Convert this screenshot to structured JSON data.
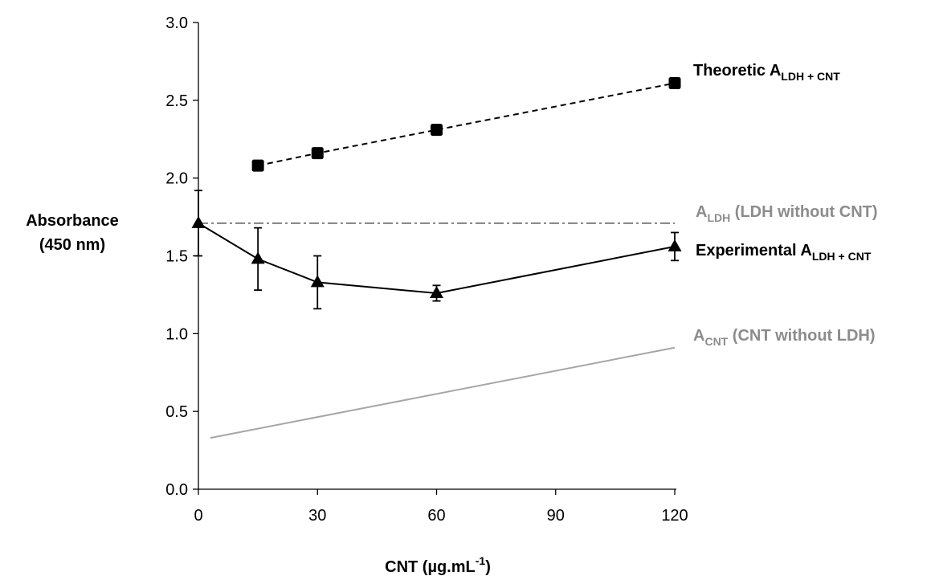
{
  "chart_data": {
    "type": "line",
    "xlabel": {
      "main": "CNT (µg.mL",
      "sup": "-1",
      "close": ")"
    },
    "ylabel": [
      "Absorbance",
      "(450 nm)"
    ],
    "xlim": [
      0,
      120
    ],
    "ylim": [
      0,
      3.0
    ],
    "x_ticks": [
      "0",
      "30",
      "60",
      "90",
      "120"
    ],
    "y_ticks": [
      "0.0",
      "0.5",
      "1.0",
      "1.5",
      "2.0",
      "2.5",
      "3.0"
    ],
    "grid": false,
    "series": [
      {
        "label": {
          "main": "Theoretic A",
          "sub": "LDH + CNT",
          "tail": ""
        },
        "style": "dashed",
        "marker": "square",
        "color": "#000000",
        "x": [
          15,
          30,
          60,
          120
        ],
        "y": [
          2.08,
          2.16,
          2.31,
          2.61
        ]
      },
      {
        "label": {
          "main": "A",
          "sub": "LDH",
          "tail": " (LDH without CNT)"
        },
        "style": "dashdot",
        "marker": "none",
        "color": "#808080",
        "x": [
          0,
          120
        ],
        "y": [
          1.71,
          1.71
        ]
      },
      {
        "label": {
          "main": "Experimental A",
          "sub": "LDH + CNT",
          "tail": ""
        },
        "style": "solid",
        "marker": "triangle",
        "color": "#000000",
        "x": [
          0,
          15,
          30,
          60,
          120
        ],
        "y": [
          1.71,
          1.48,
          1.33,
          1.26,
          1.56
        ],
        "error": [
          0.21,
          0.2,
          0.17,
          0.05,
          0.09
        ]
      },
      {
        "label": {
          "main": "A",
          "sub": "CNT",
          "tail": " (CNT without LDH)"
        },
        "style": "solid",
        "marker": "none",
        "color": "#a6a6a6",
        "x": [
          3,
          120
        ],
        "y": [
          0.33,
          0.91
        ]
      }
    ]
  }
}
